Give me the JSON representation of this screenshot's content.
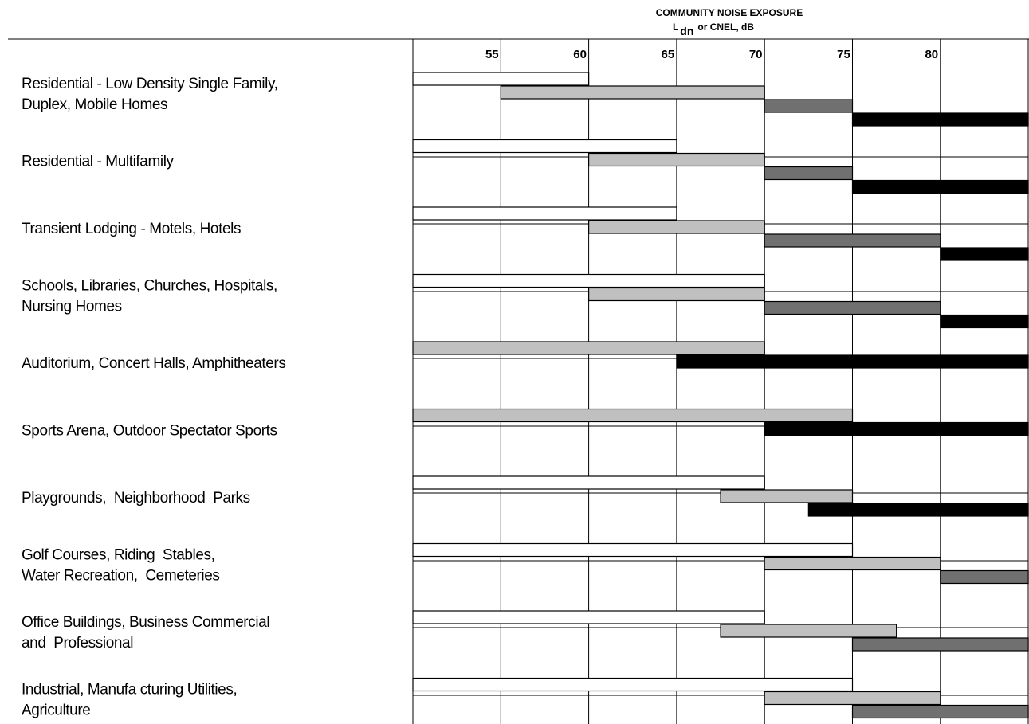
{
  "chart_data": {
    "type": "bar",
    "title": "COMMUNITY NOISE EXPOSURE",
    "subtitle_prefix": "L",
    "subtitle_subscript": "dn",
    "subtitle_suffix": "or CNEL, dB",
    "x_ticks": [
      55,
      60,
      65,
      70,
      75,
      80
    ],
    "xlim": [
      50,
      85
    ],
    "grid": true,
    "colors": {
      "level_1": "#ffffff",
      "level_2": "#c0c0c0",
      "level_3": "#707070",
      "level_4": "#000000"
    },
    "categories": [
      {
        "label_lines": [
          "Residential - Low Density Single Family,",
          "Duplex, Mobile Homes"
        ],
        "bars": [
          {
            "level": 1,
            "from": 50,
            "to": 60
          },
          {
            "level": 2,
            "from": 55,
            "to": 70
          },
          {
            "level": 3,
            "from": 70,
            "to": 75
          },
          {
            "level": 4,
            "from": 75,
            "to": 85
          }
        ]
      },
      {
        "label_lines": [
          "Residential - Multifamily"
        ],
        "bars": [
          {
            "level": 1,
            "from": 50,
            "to": 65
          },
          {
            "level": 2,
            "from": 60,
            "to": 70
          },
          {
            "level": 3,
            "from": 70,
            "to": 75
          },
          {
            "level": 4,
            "from": 75,
            "to": 85
          }
        ]
      },
      {
        "label_lines": [
          "Transient Lodging - Motels, Hotels"
        ],
        "bars": [
          {
            "level": 1,
            "from": 50,
            "to": 65
          },
          {
            "level": 2,
            "from": 60,
            "to": 70
          },
          {
            "level": 3,
            "from": 70,
            "to": 80
          },
          {
            "level": 4,
            "from": 80,
            "to": 85
          }
        ]
      },
      {
        "label_lines": [
          "Schools, Libraries, Churches, Hospitals,",
          "Nursing Homes"
        ],
        "bars": [
          {
            "level": 1,
            "from": 50,
            "to": 70
          },
          {
            "level": 2,
            "from": 60,
            "to": 70
          },
          {
            "level": 3,
            "from": 70,
            "to": 80
          },
          {
            "level": 4,
            "from": 80,
            "to": 85
          }
        ]
      },
      {
        "label_lines": [
          "Auditorium, Concert Halls, Amphitheaters"
        ],
        "bars": [
          {
            "level": 2,
            "from": 50,
            "to": 70
          },
          {
            "level": 4,
            "from": 65,
            "to": 85
          }
        ]
      },
      {
        "label_lines": [
          "Sports Arena, Outdoor Spectator Sports"
        ],
        "bars": [
          {
            "level": 2,
            "from": 50,
            "to": 75
          },
          {
            "level": 4,
            "from": 70,
            "to": 85
          }
        ]
      },
      {
        "label_lines": [
          "Playgrounds,  Neighborhood  Parks"
        ],
        "bars": [
          {
            "level": 1,
            "from": 50,
            "to": 70
          },
          {
            "level": 2,
            "from": 67.5,
            "to": 75
          },
          {
            "level": 4,
            "from": 72.5,
            "to": 85
          }
        ]
      },
      {
        "label_lines": [
          "Golf Courses, Riding  Stables,",
          "Water Recreation,  Cemeteries"
        ],
        "bars": [
          {
            "level": 1,
            "from": 50,
            "to": 75
          },
          {
            "level": 2,
            "from": 70,
            "to": 80
          },
          {
            "level": 3,
            "from": 80,
            "to": 85
          }
        ]
      },
      {
        "label_lines": [
          "Office Buildings, Business Commercial",
          "and  Professional"
        ],
        "bars": [
          {
            "level": 1,
            "from": 50,
            "to": 70
          },
          {
            "level": 2,
            "from": 67.5,
            "to": 77.5
          },
          {
            "level": 3,
            "from": 75,
            "to": 85
          }
        ]
      },
      {
        "label_lines": [
          "Industrial, Manufa cturing Utilities,",
          "Agriculture"
        ],
        "bars": [
          {
            "level": 1,
            "from": 50,
            "to": 75
          },
          {
            "level": 2,
            "from": 70,
            "to": 80
          },
          {
            "level": 3,
            "from": 75,
            "to": 85
          }
        ]
      }
    ]
  }
}
